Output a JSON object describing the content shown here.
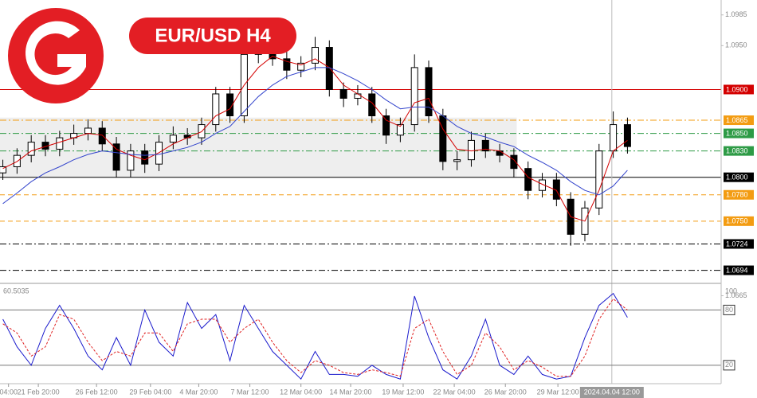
{
  "chart_data": [
    {
      "type": "candlestick",
      "title": "EUR/USD H4",
      "xlim": [
        -0.2,
        50.6
      ],
      "ylim": [
        1.068,
        1.1002
      ],
      "open": [
        1.0805,
        1.0812,
        1.0825,
        1.084,
        1.0832,
        1.0845,
        1.085,
        1.0856,
        1.0838,
        1.0808,
        1.083,
        1.0815,
        1.084,
        1.0848,
        1.0845,
        1.086,
        1.0895,
        1.087,
        1.094,
        1.0945,
        1.0935,
        1.0922,
        1.093,
        1.0948,
        1.09,
        1.089,
        1.0895,
        1.087,
        1.0848,
        1.086,
        1.0925,
        1.087,
        1.0818,
        1.082,
        1.0842,
        1.083,
        1.0825,
        1.081,
        1.0785,
        1.0797,
        1.0775,
        1.0735,
        1.0765,
        1.083,
        1.086
      ],
      "high": [
        1.082,
        1.0833,
        1.0848,
        1.0848,
        1.0853,
        1.086,
        1.0866,
        1.0864,
        1.0846,
        1.0838,
        1.0838,
        1.0848,
        1.0858,
        1.0856,
        1.0868,
        1.0903,
        1.0903,
        1.0948,
        1.0953,
        1.0953,
        1.0943,
        1.0938,
        1.096,
        1.0956,
        1.0908,
        1.0905,
        1.0903,
        1.0878,
        1.0868,
        1.094,
        1.0933,
        1.0878,
        1.083,
        1.0852,
        1.085,
        1.0838,
        1.0833,
        1.0818,
        1.0805,
        1.0805,
        1.0783,
        1.0773,
        1.0838,
        1.0875,
        1.0868
      ],
      "low": [
        1.0797,
        1.0804,
        1.0817,
        1.0824,
        1.0824,
        1.0837,
        1.0842,
        1.083,
        1.08,
        1.08,
        1.0805,
        1.0807,
        1.0832,
        1.0837,
        1.0837,
        1.0852,
        1.0862,
        1.0862,
        1.093,
        1.0927,
        1.0912,
        1.0914,
        1.0922,
        1.0892,
        1.088,
        1.0882,
        1.0862,
        1.0838,
        1.084,
        1.0852,
        1.0862,
        1.0808,
        1.0808,
        1.0812,
        1.0822,
        1.0817,
        1.08,
        1.0775,
        1.0777,
        1.0767,
        1.0722,
        1.0727,
        1.0757,
        1.0822,
        1.0827
      ],
      "close": [
        1.0812,
        1.0825,
        1.084,
        1.0832,
        1.0845,
        1.085,
        1.0856,
        1.0838,
        1.0808,
        1.083,
        1.0815,
        1.084,
        1.0848,
        1.0845,
        1.086,
        1.0895,
        1.087,
        1.094,
        1.0945,
        1.0935,
        1.0922,
        1.093,
        1.0948,
        1.09,
        1.089,
        1.0895,
        1.087,
        1.0848,
        1.086,
        1.0925,
        1.087,
        1.0818,
        1.082,
        1.0842,
        1.083,
        1.0825,
        1.081,
        1.0785,
        1.0797,
        1.0775,
        1.0735,
        1.0765,
        1.083,
        1.086,
        1.0835
      ],
      "up_color": "#ffffff",
      "down_color": "#000000",
      "series": [
        {
          "color": "#d40000",
          "values": [
            1.081,
            1.0818,
            1.083,
            1.0835,
            1.084,
            1.0845,
            1.085,
            1.0848,
            1.0832,
            1.0825,
            1.082,
            1.0828,
            1.0838,
            1.0845,
            1.0852,
            1.087,
            1.0878,
            1.0905,
            1.0925,
            1.0938,
            1.0932,
            1.0928,
            1.0935,
            1.0925,
            1.0905,
            1.0895,
            1.0885,
            1.0865,
            1.0858,
            1.0885,
            1.089,
            1.0855,
            1.0832,
            1.083,
            1.0832,
            1.083,
            1.082,
            1.08,
            1.0792,
            1.0785,
            1.0755,
            1.075,
            1.0785,
            1.083,
            1.0842
          ]
        },
        {
          "color": "#3344cc",
          "values": [
            1.077,
            1.0782,
            1.0795,
            1.0805,
            1.0812,
            1.082,
            1.0826,
            1.083,
            1.0828,
            1.0826,
            1.0825,
            1.0826,
            1.083,
            1.0834,
            1.084,
            1.085,
            1.0858,
            1.0875,
            1.0892,
            1.0905,
            1.0915,
            1.092,
            1.0925,
            1.0925,
            1.0918,
            1.091,
            1.09,
            1.0888,
            1.0878,
            1.088,
            1.088,
            1.087,
            1.0858,
            1.085,
            1.0846,
            1.084,
            1.0835,
            1.0825,
            1.0817,
            1.0808,
            1.0795,
            1.0785,
            1.078,
            1.079,
            1.0808
          ]
        }
      ],
      "zone": {
        "from": 1.08,
        "to": 1.0868,
        "x_to": 36.2,
        "color": "#eeeeee"
      },
      "yticks": [
        {
          "value": 1.0985,
          "label": "1.0985"
        },
        {
          "value": 1.095,
          "label": "1.0950"
        },
        {
          "value": 1.0665,
          "label": "1.0665"
        }
      ],
      "levels": [
        {
          "value": 1.09,
          "label": "1.0900",
          "color": "#d40000",
          "style": "solid"
        },
        {
          "value": 1.0865,
          "label": "1.0865",
          "color": "#f39c12",
          "style": "dashdot"
        },
        {
          "value": 1.085,
          "label": "1.0850",
          "color": "#2e9b46",
          "style": "dashdot"
        },
        {
          "value": 1.083,
          "label": "1.0830",
          "color": "#2e9b46",
          "style": "dashdot"
        },
        {
          "value": 1.08,
          "label": "1.0800",
          "color": "#000000",
          "style": "solid"
        },
        {
          "value": 1.078,
          "label": "1.0780",
          "color": "#f39c12",
          "style": "dashed"
        },
        {
          "value": 1.075,
          "label": "1.0750",
          "color": "#f39c12",
          "style": "dashed"
        },
        {
          "value": 1.0724,
          "label": "1.0724",
          "color": "#000000",
          "style": "dashdot"
        },
        {
          "value": 1.0694,
          "label": "1.0694",
          "color": "#000000",
          "style": "dashdot"
        }
      ],
      "xticks": [
        {
          "value": 0.4,
          "label": "04:00"
        },
        {
          "value": 2.5,
          "label": "21 Feb 20:00"
        },
        {
          "value": 6.6,
          "label": "26 Feb 12:00"
        },
        {
          "value": 10.4,
          "label": "29 Feb 04:00"
        },
        {
          "value": 13.8,
          "label": "4 Mar 20:00"
        },
        {
          "value": 17.4,
          "label": "7 Mar 12:00"
        },
        {
          "value": 21,
          "label": "12 Mar 04:00"
        },
        {
          "value": 24.5,
          "label": "14 Mar 20:00"
        },
        {
          "value": 28.2,
          "label": "19 Mar 12:00"
        },
        {
          "value": 31.8,
          "label": "22 Mar 04:00"
        },
        {
          "value": 35.4,
          "label": "26 Mar 20:00"
        },
        {
          "value": 39.1,
          "label": "29 Mar 12:00"
        }
      ],
      "crosshair": {
        "x": 42.9,
        "label": "2024.04.04 12:00"
      }
    },
    {
      "type": "line",
      "indicator_value": 60.5035,
      "ylim": [
        0,
        108
      ],
      "yticks": [
        100,
        80,
        20
      ],
      "hlines": [
        80,
        20
      ],
      "series": [
        {
          "color": "#1a1acc",
          "dashed": false,
          "values": [
            70,
            40,
            20,
            60,
            85,
            60,
            30,
            15,
            50,
            20,
            80,
            45,
            30,
            88,
            60,
            75,
            25,
            85,
            60,
            35,
            20,
            5,
            35,
            10,
            10,
            8,
            20,
            10,
            5,
            95,
            50,
            15,
            5,
            30,
            70,
            20,
            10,
            30,
            10,
            5,
            8,
            50,
            85,
            98,
            72
          ]
        },
        {
          "color": "#e02020",
          "dashed": true,
          "values": [
            65,
            55,
            30,
            40,
            75,
            70,
            45,
            25,
            35,
            30,
            55,
            55,
            35,
            65,
            70,
            70,
            45,
            60,
            70,
            45,
            25,
            12,
            25,
            20,
            12,
            10,
            15,
            12,
            8,
            60,
            70,
            35,
            10,
            20,
            55,
            40,
            15,
            25,
            18,
            8,
            8,
            30,
            70,
            92,
            80
          ]
        }
      ]
    }
  ]
}
